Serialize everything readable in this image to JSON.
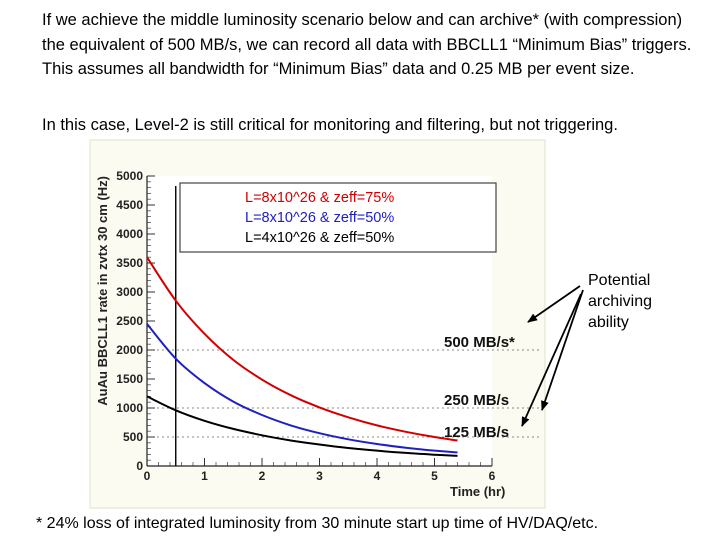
{
  "slide": {
    "intro_text": "If we achieve the middle luminosity scenario below and can archive* (with compression) the equivalent of 500 MB/s, we can record all data with BBCLL1 “Minimum Bias” triggers.  This assumes all bandwidth for “Minimum Bias” data and 0.25 MB per event size.",
    "note_text": "In this case, Level-2 is still critical for monitoring and filtering, but not triggering.",
    "footnote_text": "* 24% loss of integrated luminosity from 30 minute start up time of HV/DAQ/etc."
  },
  "chart_data": {
    "type": "line",
    "title": "",
    "xlabel": "Time (hr)",
    "ylabel": "AuAu BBCLL1 rate in zvtx 30 cm (Hz)",
    "xlim": [
      0,
      6
    ],
    "ylim": [
      0,
      5000
    ],
    "x_ticks": [
      "0",
      "1",
      "2",
      "3",
      "4",
      "5",
      "6"
    ],
    "y_ticks": [
      "0",
      "500",
      "1000",
      "1500",
      "2000",
      "2500",
      "3000",
      "3500",
      "4000",
      "4500",
      "5000"
    ],
    "startup_marker_x": 0.5,
    "series": [
      {
        "name": "L=8x10^26 & zeff=75%",
        "color": "#d00000",
        "x": [
          0,
          0.5,
          1,
          1.5,
          2,
          2.5,
          3,
          3.5,
          4,
          4.5,
          5,
          5.4
        ],
        "values": [
          3600,
          2850,
          2280,
          1830,
          1490,
          1220,
          1010,
          840,
          700,
          590,
          500,
          440
        ]
      },
      {
        "name": "L=8x10^26 & zeff=50%",
        "color": "#2020c0",
        "x": [
          0,
          0.5,
          1,
          1.5,
          2,
          2.5,
          3,
          3.5,
          4,
          4.5,
          5,
          5.4
        ],
        "values": [
          2450,
          1850,
          1430,
          1110,
          880,
          700,
          565,
          460,
          380,
          315,
          265,
          235
        ]
      },
      {
        "name": "L=4x10^26 & zeff=50%",
        "color": "#000000",
        "x": [
          0,
          0.5,
          1,
          1.5,
          2,
          2.5,
          3,
          3.5,
          4,
          4.5,
          5,
          5.4
        ],
        "values": [
          1200,
          960,
          780,
          640,
          530,
          440,
          370,
          310,
          265,
          225,
          195,
          175
        ]
      }
    ],
    "annotations": [
      {
        "label": "500 MB/s*",
        "y_value": 2000
      },
      {
        "label": "250 MB/s",
        "y_value": 1000
      },
      {
        "label": "125 MB/s",
        "y_value": 500
      }
    ],
    "callout": {
      "lines": [
        "Potential",
        "archiving",
        "ability"
      ]
    }
  }
}
